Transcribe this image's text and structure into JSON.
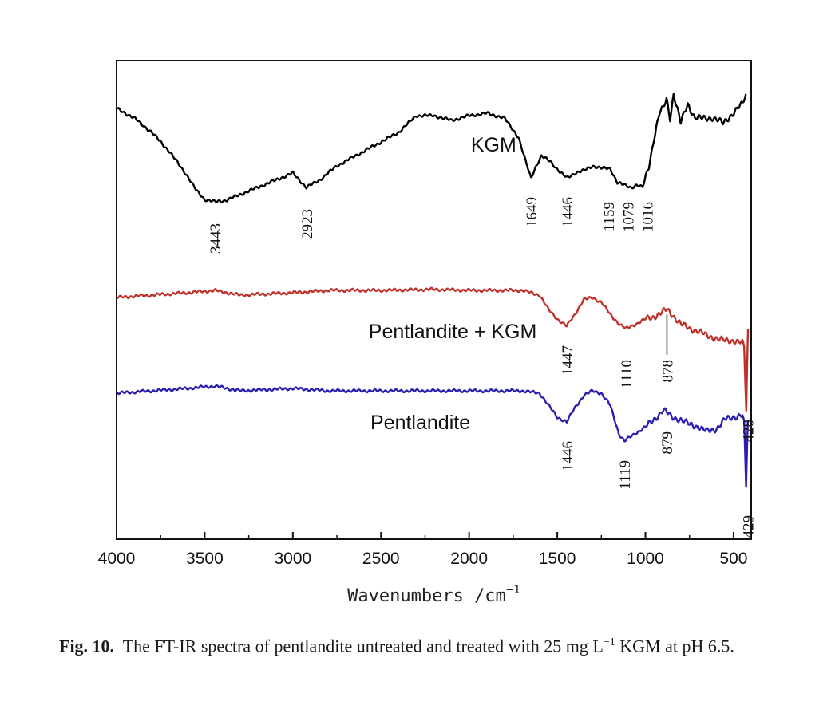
{
  "chart_data": {
    "type": "line",
    "title": "",
    "xlabel": "Wavenumbers /cm",
    "xlabel_superscript": "−1",
    "ylabel": "",
    "xlim": [
      4000,
      400
    ],
    "x_reversed": true,
    "ylim": [
      0,
      100
    ],
    "x_ticks": [
      "4000",
      "3500",
      "3000",
      "2500",
      "2000",
      "1500",
      "1000",
      "500"
    ],
    "grid": false,
    "series": [
      {
        "name": "KGM",
        "color": "#000000",
        "points": [
          [
            4000,
            90
          ],
          [
            3900,
            88
          ],
          [
            3800,
            85
          ],
          [
            3700,
            81
          ],
          [
            3600,
            76
          ],
          [
            3550,
            73
          ],
          [
            3500,
            71
          ],
          [
            3443,
            70.5
          ],
          [
            3380,
            70.8
          ],
          [
            3300,
            72
          ],
          [
            3200,
            73.5
          ],
          [
            3100,
            75
          ],
          [
            3000,
            76.5
          ],
          [
            2923,
            73.5
          ],
          [
            2850,
            75
          ],
          [
            2750,
            78
          ],
          [
            2650,
            80
          ],
          [
            2500,
            83
          ],
          [
            2400,
            85
          ],
          [
            2300,
            88.5
          ],
          [
            2200,
            88.5
          ],
          [
            2100,
            87.5
          ],
          [
            2000,
            88.5
          ],
          [
            1900,
            89
          ],
          [
            1800,
            88
          ],
          [
            1720,
            84
          ],
          [
            1680,
            79
          ],
          [
            1649,
            75.5
          ],
          [
            1620,
            78
          ],
          [
            1590,
            80
          ],
          [
            1540,
            79
          ],
          [
            1480,
            76.5
          ],
          [
            1446,
            75.5
          ],
          [
            1400,
            76.5
          ],
          [
            1350,
            77
          ],
          [
            1300,
            78
          ],
          [
            1250,
            77.5
          ],
          [
            1200,
            77.5
          ],
          [
            1159,
            74.5
          ],
          [
            1120,
            74
          ],
          [
            1079,
            73.5
          ],
          [
            1050,
            74
          ],
          [
            1016,
            73.5
          ],
          [
            980,
            78
          ],
          [
            950,
            84
          ],
          [
            920,
            89
          ],
          [
            900,
            90
          ],
          [
            880,
            92
          ],
          [
            860,
            88
          ],
          [
            840,
            93
          ],
          [
            800,
            87
          ],
          [
            760,
            91
          ],
          [
            720,
            88
          ],
          [
            680,
            88
          ],
          [
            620,
            88
          ],
          [
            560,
            87
          ],
          [
            500,
            89
          ],
          [
            450,
            91
          ],
          [
            430,
            93
          ]
        ]
      },
      {
        "name": "Pentlandite + KGM",
        "color": "#c0302b",
        "points": [
          [
            4000,
            50.5
          ],
          [
            3800,
            51
          ],
          [
            3600,
            51.5
          ],
          [
            3443,
            52
          ],
          [
            3300,
            51
          ],
          [
            3000,
            51.5
          ],
          [
            2800,
            52
          ],
          [
            2500,
            52
          ],
          [
            2200,
            52.2
          ],
          [
            2000,
            52
          ],
          [
            1700,
            52
          ],
          [
            1600,
            51
          ],
          [
            1550,
            48
          ],
          [
            1500,
            46
          ],
          [
            1447,
            44.5
          ],
          [
            1400,
            47
          ],
          [
            1350,
            50
          ],
          [
            1300,
            50.5
          ],
          [
            1250,
            49.5
          ],
          [
            1200,
            47
          ],
          [
            1150,
            45
          ],
          [
            1110,
            44
          ],
          [
            1050,
            45
          ],
          [
            1000,
            46
          ],
          [
            950,
            46.5
          ],
          [
            900,
            47.5
          ],
          [
            878,
            48
          ],
          [
            850,
            47
          ],
          [
            800,
            45
          ],
          [
            750,
            44
          ],
          [
            700,
            43.5
          ],
          [
            650,
            42.5
          ],
          [
            600,
            42
          ],
          [
            550,
            41.5
          ],
          [
            500,
            41.5
          ],
          [
            450,
            41
          ],
          [
            440,
            40
          ],
          [
            428,
            27
          ],
          [
            418,
            44
          ]
        ]
      },
      {
        "name": "Pentlandite",
        "color": "#2a1fb0",
        "points": [
          [
            4000,
            30.5
          ],
          [
            3800,
            31
          ],
          [
            3600,
            31.5
          ],
          [
            3443,
            32
          ],
          [
            3300,
            31
          ],
          [
            3000,
            31.5
          ],
          [
            2800,
            31
          ],
          [
            2500,
            31
          ],
          [
            2200,
            31
          ],
          [
            2000,
            31
          ],
          [
            1700,
            31
          ],
          [
            1600,
            30.5
          ],
          [
            1550,
            28
          ],
          [
            1500,
            25.5
          ],
          [
            1446,
            24.5
          ],
          [
            1400,
            27.5
          ],
          [
            1350,
            30
          ],
          [
            1300,
            31
          ],
          [
            1250,
            30.5
          ],
          [
            1200,
            28
          ],
          [
            1150,
            22
          ],
          [
            1119,
            20.5
          ],
          [
            1080,
            21.5
          ],
          [
            1000,
            23.5
          ],
          [
            950,
            25
          ],
          [
            900,
            27
          ],
          [
            879,
            26.5
          ],
          [
            850,
            25.5
          ],
          [
            800,
            25
          ],
          [
            750,
            24
          ],
          [
            700,
            23.5
          ],
          [
            650,
            22.5
          ],
          [
            600,
            23
          ],
          [
            550,
            25
          ],
          [
            500,
            25.5
          ],
          [
            450,
            26
          ],
          [
            440,
            24
          ],
          [
            429,
            11
          ],
          [
            419,
            25
          ]
        ]
      }
    ],
    "series_labels": [
      {
        "text": "KGM",
        "x": 1990,
        "y": 81
      },
      {
        "text": "Pentlandite + KGM",
        "x": 2570,
        "y": 42
      },
      {
        "text": "Pentlandite",
        "x": 2560,
        "y": 23
      }
    ],
    "peak_annotations": [
      {
        "text": "3443",
        "x": 3443,
        "y": 66,
        "color": "#111111"
      },
      {
        "text": "2923",
        "x": 2923,
        "y": 69,
        "color": "#111111"
      },
      {
        "text": "1649",
        "x": 1649,
        "y": 71.5,
        "color": "#111111"
      },
      {
        "text": "1446",
        "x": 1446,
        "y": 71.5,
        "color": "#111111"
      },
      {
        "text": "1159",
        "x": 1210,
        "y": 70.5,
        "color": "#111111"
      },
      {
        "text": "1079",
        "x": 1100,
        "y": 70.5,
        "color": "#111111"
      },
      {
        "text": "1016",
        "x": 990,
        "y": 70.5,
        "color": "#111111"
      },
      {
        "text": "1447",
        "x": 1447,
        "y": 40.5,
        "color": "#111111"
      },
      {
        "text": "1110",
        "x": 1110,
        "y": 37.5,
        "color": "#111111"
      },
      {
        "text": "878",
        "x": 878,
        "y": 37.5,
        "color": "#111111"
      },
      {
        "text": "428",
        "x": 420,
        "y": 25,
        "color": "#111111"
      },
      {
        "text": "1446",
        "x": 1446,
        "y": 20.5,
        "color": "#111111"
      },
      {
        "text": "1119",
        "x": 1119,
        "y": 16.5,
        "color": "#111111"
      },
      {
        "text": "879",
        "x": 879,
        "y": 22.5,
        "color": "#111111"
      },
      {
        "text": "429",
        "x": 420,
        "y": 5,
        "color": "#111111"
      }
    ]
  },
  "caption": {
    "label": "Fig. 10.",
    "text_1": "The FT-IR spectra of pentlandite untreated and treated with 25 mg L",
    "superscript": "−1",
    "text_2": " KGM at pH 6.5."
  }
}
